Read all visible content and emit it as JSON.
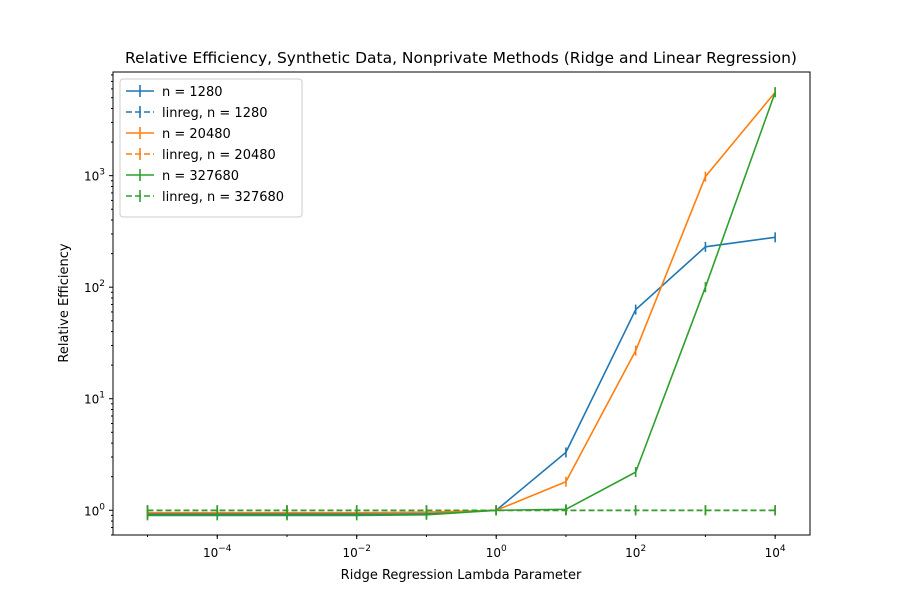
{
  "chart_data": {
    "type": "line",
    "title": "Relative Efficiency, Synthetic Data, Nonprivate Methods (Ridge and Linear Regression)",
    "xlabel": "Ridge Regression Lambda Parameter",
    "ylabel": "Relative Efficiency",
    "xscale": "log",
    "yscale": "log",
    "xlim": [
      3.2e-06,
      31600
    ],
    "ylim": [
      0.6,
      8500
    ],
    "grid": false,
    "legend_position": "top-left",
    "x": [
      1e-05,
      0.0001,
      0.001,
      0.01,
      0.1,
      1,
      10,
      100,
      1000,
      10000
    ],
    "x_ticks": [
      {
        "value": 0.0001,
        "base": "10",
        "exp": "−4"
      },
      {
        "value": 0.01,
        "base": "10",
        "exp": "−2"
      },
      {
        "value": 1,
        "base": "10",
        "exp": "0"
      },
      {
        "value": 100,
        "base": "10",
        "exp": "2"
      },
      {
        "value": 10000,
        "base": "10",
        "exp": "4"
      }
    ],
    "y_ticks": [
      {
        "value": 1,
        "base": "10",
        "exp": "0"
      },
      {
        "value": 10,
        "base": "10",
        "exp": "1"
      },
      {
        "value": 100,
        "base": "10",
        "exp": "2"
      },
      {
        "value": 1000,
        "base": "10",
        "exp": "3"
      }
    ],
    "series": [
      {
        "name": "n = 1280",
        "color": "#1f77b4",
        "style": "solid",
        "values": [
          0.92,
          0.92,
          0.92,
          0.92,
          0.93,
          1.0,
          3.3,
          63,
          230,
          280
        ]
      },
      {
        "name": "linreg, n = 1280",
        "color": "#1f77b4",
        "style": "dashed",
        "values": [
          1.0,
          1.0,
          1.0,
          1.0,
          1.0,
          1.0,
          1.0,
          1.0,
          1.0,
          1.0
        ]
      },
      {
        "name": "n = 20480",
        "color": "#ff7f0e",
        "style": "solid",
        "values": [
          0.95,
          0.95,
          0.95,
          0.95,
          0.96,
          1.0,
          1.8,
          27,
          980,
          5600
        ]
      },
      {
        "name": "linreg, n = 20480",
        "color": "#ff7f0e",
        "style": "dashed",
        "values": [
          1.0,
          1.0,
          1.0,
          1.0,
          1.0,
          1.0,
          1.0,
          1.0,
          1.0,
          1.0
        ]
      },
      {
        "name": "n = 327680",
        "color": "#2ca02c",
        "style": "solid",
        "values": [
          0.9,
          0.9,
          0.9,
          0.9,
          0.91,
          1.0,
          1.02,
          2.2,
          100,
          5600
        ]
      },
      {
        "name": "linreg, n = 327680",
        "color": "#2ca02c",
        "style": "dashed",
        "values": [
          1.0,
          1.0,
          1.0,
          1.0,
          1.0,
          1.0,
          1.0,
          1.0,
          1.0,
          1.0
        ]
      }
    ]
  }
}
